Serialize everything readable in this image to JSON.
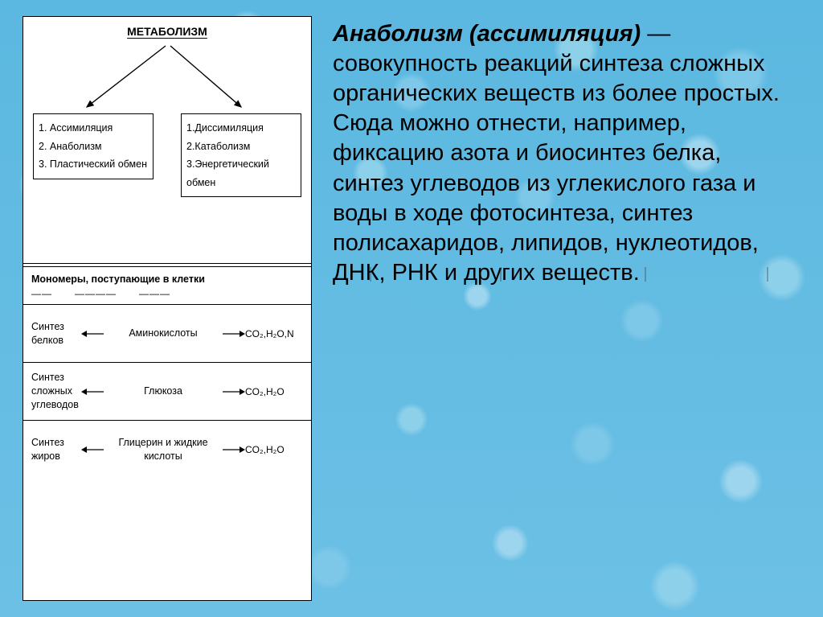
{
  "background": {
    "base_color": "#5bb8e0",
    "droplet_colors": [
      "#7dc8e8",
      "#8dd0ea",
      "#9dd5ee"
    ]
  },
  "diagram": {
    "title": "МЕТАБОЛИЗМ",
    "left_branch": {
      "items": [
        "1. Ассимиляция",
        "2. Анаболизм",
        "3. Пластический обмен"
      ]
    },
    "right_branch": {
      "items": [
        "1.Диссимиляция",
        "2.Катаболизм",
        "3.Энергетический обмен"
      ]
    },
    "monomers_header": "Мономеры, поступающие в клетки",
    "dash_placeholders": [
      "——",
      "————",
      "———"
    ],
    "reactions": [
      {
        "left": "Синтез белков",
        "mid": "Аминокислоты",
        "right": "CO₂,H₂O,N"
      },
      {
        "left": "Синтез сложных углеводов",
        "mid": "Глюкоза",
        "right": "CO₂,H₂O"
      },
      {
        "left": "Синтез жиров",
        "mid": "Глицерин и жидкие кислоты",
        "right": "CO₂,H₂O"
      }
    ],
    "arrow_stroke": "#000000",
    "box_border": "#000000",
    "box_bg": "#ffffff"
  },
  "paragraph": {
    "title": "Анаболизм (ассимиляция)",
    "body": " — совокупность реакций синтеза сложных органических веществ из более простых. Сюда можно отнести, например, фиксацию азота и биосинтез белка, синтез углеводов из углекислого газа и воды в ходе фотосинтеза, синтез полисахаридов, липидов, нуклеотидов, ДНК, РНК и других веществ."
  },
  "typography": {
    "title_fontsize_pt": 22,
    "body_fontsize_pt": 22,
    "diagram_fontsize_pt": 10,
    "font_family": "Arial"
  }
}
